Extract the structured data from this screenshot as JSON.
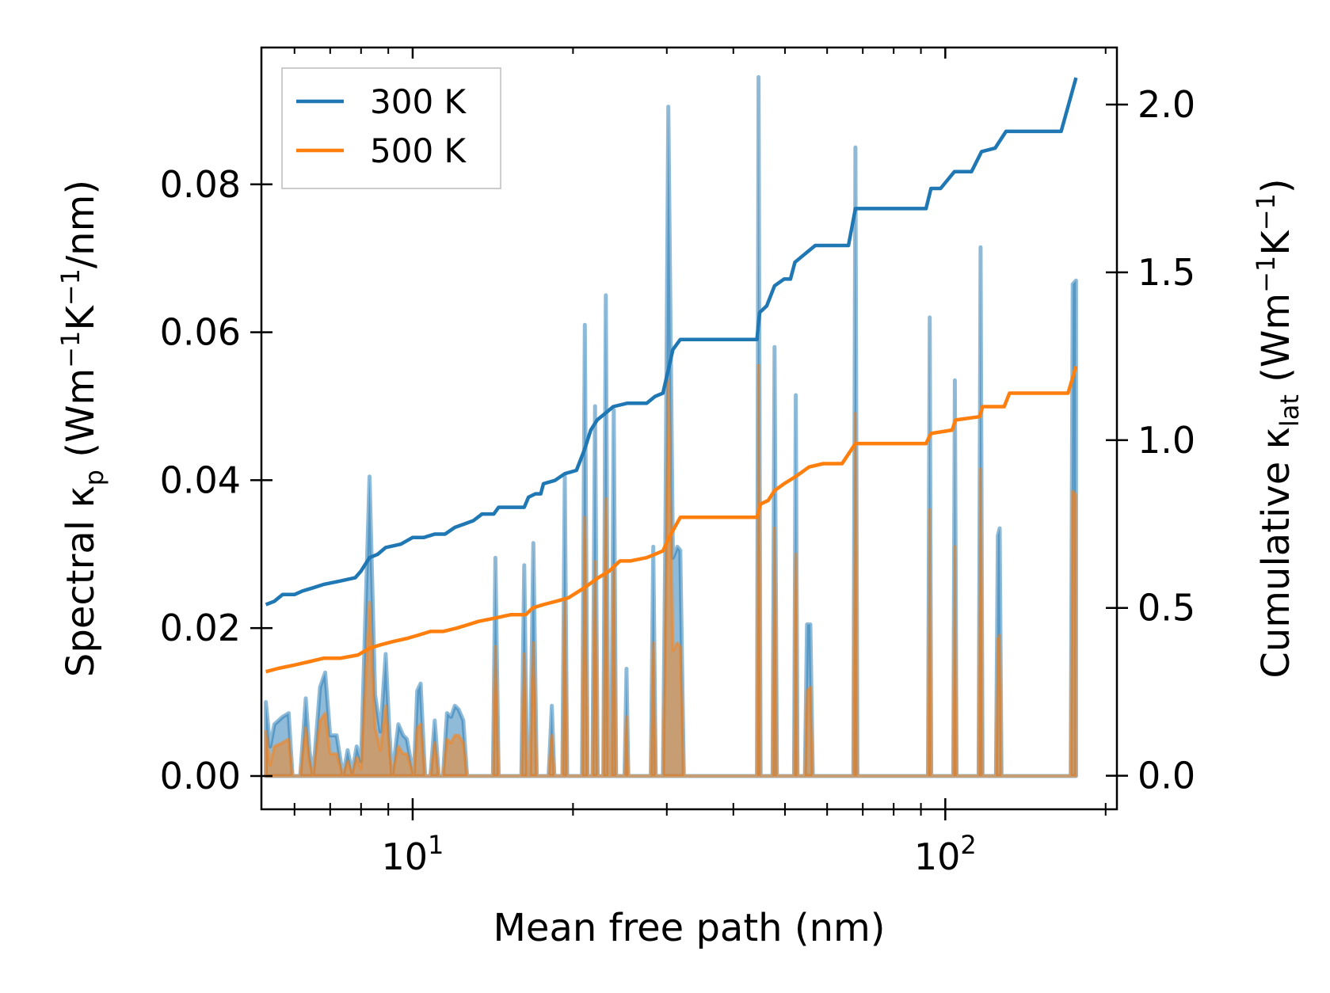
{
  "chart_data": {
    "type": "line",
    "x_scale": "log",
    "xlabel": "Mean free path (nm)",
    "ylabel_left": {
      "prefix": "Spectral κ",
      "sub": "p",
      "suffix_pre": " (Wm",
      "sup1": "−1",
      "mid": "K",
      "sup2": "−1",
      "tail": "/nm)"
    },
    "ylabel_right": {
      "prefix": "Cumulative κ",
      "sub": "lat",
      "suffix_pre": " (Wm",
      "sup1": "−1",
      "mid": "K",
      "sup2": "−1",
      "tail": ")"
    },
    "xlim": [
      5.2,
      210
    ],
    "ylim_left": [
      -0.0045,
      0.0985
    ],
    "ylim_right": [
      -0.1,
      2.17
    ],
    "x_ticks": [
      {
        "value": 10,
        "base": "10",
        "exp": "1"
      },
      {
        "value": 100,
        "base": "10",
        "exp": "2"
      }
    ],
    "y_left_ticks": [
      "0.00",
      "0.02",
      "0.04",
      "0.06",
      "0.08"
    ],
    "y_right_ticks": [
      "0.0",
      "0.5",
      "1.0",
      "1.5",
      "2.0"
    ],
    "legend": {
      "position": "top-left",
      "entries": [
        "300 K",
        "500 K"
      ]
    },
    "colors": {
      "300K": "#1f77b4",
      "500K": "#ff7f0e",
      "fill_300K": "#1f77b4",
      "fill_500K": "#ff7f0e"
    },
    "spectral_300K": [
      [
        5.3,
        0.01
      ],
      [
        5.4,
        0.004
      ],
      [
        5.5,
        0.007
      ],
      [
        5.7,
        0.008
      ],
      [
        5.85,
        0.0085
      ],
      [
        5.95,
        0
      ],
      [
        6.15,
        0
      ],
      [
        6.3,
        0.0105
      ],
      [
        6.4,
        0.0035
      ],
      [
        6.5,
        0
      ],
      [
        6.7,
        0.012
      ],
      [
        6.85,
        0.014
      ],
      [
        7.0,
        0.0055
      ],
      [
        7.2,
        0.0055
      ],
      [
        7.4,
        0
      ],
      [
        7.55,
        0.0035
      ],
      [
        7.7,
        0.0005
      ],
      [
        7.85,
        0.004
      ],
      [
        8.0,
        0.002
      ],
      [
        8.3,
        0.0405
      ],
      [
        8.5,
        0.011
      ],
      [
        8.7,
        0.006
      ],
      [
        8.9,
        0.0165
      ],
      [
        9.05,
        0.0055
      ],
      [
        9.15,
        0
      ],
      [
        9.4,
        0.007
      ],
      [
        9.6,
        0.0055
      ],
      [
        9.75,
        0.005
      ],
      [
        9.9,
        0.0025
      ],
      [
        10.05,
        0
      ],
      [
        10.2,
        0.0115
      ],
      [
        10.35,
        0.0125
      ],
      [
        10.55,
        0
      ],
      [
        10.8,
        0
      ],
      [
        11.0,
        0.0075
      ],
      [
        11.2,
        0
      ],
      [
        11.4,
        0
      ],
      [
        11.6,
        0.0085
      ],
      [
        11.8,
        0.008
      ],
      [
        12.0,
        0.0095
      ],
      [
        12.2,
        0.009
      ],
      [
        12.45,
        0.0075
      ],
      [
        12.65,
        0
      ],
      [
        14.15,
        0
      ],
      [
        14.3,
        0.0295
      ],
      [
        14.5,
        0
      ],
      [
        16.0,
        0
      ],
      [
        16.2,
        0.0285
      ],
      [
        16.4,
        0
      ],
      [
        16.6,
        0
      ],
      [
        16.85,
        0.0315
      ],
      [
        17.1,
        0
      ],
      [
        18.0,
        0
      ],
      [
        18.25,
        0.0095
      ],
      [
        18.45,
        0
      ],
      [
        19.1,
        0
      ],
      [
        19.3,
        0.0405
      ],
      [
        19.5,
        0
      ],
      [
        20.8,
        0
      ],
      [
        21.05,
        0.061
      ],
      [
        21.3,
        0
      ],
      [
        21.75,
        0
      ],
      [
        22.0,
        0.05
      ],
      [
        22.25,
        0
      ],
      [
        22.8,
        0
      ],
      [
        23.05,
        0.065
      ],
      [
        23.3,
        0
      ],
      [
        23.6,
        0
      ],
      [
        23.85,
        0.0495
      ],
      [
        24.1,
        0
      ],
      [
        25.0,
        0
      ],
      [
        25.2,
        0.0145
      ],
      [
        25.4,
        0
      ],
      [
        28.0,
        0
      ],
      [
        28.3,
        0.031
      ],
      [
        28.6,
        0
      ],
      [
        29.5,
        0
      ],
      [
        29.8,
        0.0305
      ],
      [
        30.2,
        0.0905
      ],
      [
        30.8,
        0.0295
      ],
      [
        31.4,
        0.031
      ],
      [
        31.8,
        0.0305
      ],
      [
        32.3,
        0
      ],
      [
        44.3,
        0
      ],
      [
        44.6,
        0.0945
      ],
      [
        45.0,
        0
      ],
      [
        47.4,
        0
      ],
      [
        47.8,
        0.058
      ],
      [
        48.3,
        0
      ],
      [
        52.0,
        0
      ],
      [
        52.4,
        0.0515
      ],
      [
        52.8,
        0
      ],
      [
        54.5,
        0
      ],
      [
        55.0,
        0.0205
      ],
      [
        55.8,
        0.0205
      ],
      [
        56.4,
        0
      ],
      [
        67.2,
        0
      ],
      [
        67.8,
        0.085
      ],
      [
        68.4,
        0
      ],
      [
        92.8,
        0
      ],
      [
        93.5,
        0.062
      ],
      [
        94.1,
        0
      ],
      [
        103.5,
        0
      ],
      [
        104.2,
        0.0535
      ],
      [
        105,
        0
      ],
      [
        115.5,
        0
      ],
      [
        116.5,
        0.0715
      ],
      [
        117.5,
        0
      ],
      [
        124.5,
        0
      ],
      [
        125.5,
        0.0325
      ],
      [
        126.5,
        0.0335
      ],
      [
        127.5,
        0
      ],
      [
        172,
        0
      ],
      [
        173.5,
        0.0665
      ],
      [
        176,
        0.067
      ]
    ],
    "spectral_500K": [
      [
        5.3,
        0.006
      ],
      [
        5.4,
        0.0015
      ],
      [
        5.5,
        0.004
      ],
      [
        5.7,
        0.0045
      ],
      [
        5.85,
        0.005
      ],
      [
        5.95,
        0
      ],
      [
        6.15,
        0
      ],
      [
        6.3,
        0.0065
      ],
      [
        6.4,
        0.002
      ],
      [
        6.5,
        0
      ],
      [
        6.7,
        0.0075
      ],
      [
        6.85,
        0.0085
      ],
      [
        7.0,
        0.003
      ],
      [
        7.2,
        0.003
      ],
      [
        7.4,
        0
      ],
      [
        7.55,
        0.002
      ],
      [
        7.7,
        0.0003
      ],
      [
        7.85,
        0.0025
      ],
      [
        8.0,
        0.001
      ],
      [
        8.3,
        0.0235
      ],
      [
        8.5,
        0.0065
      ],
      [
        8.7,
        0.0035
      ],
      [
        8.9,
        0.0095
      ],
      [
        9.05,
        0.003
      ],
      [
        9.15,
        0
      ],
      [
        9.4,
        0.004
      ],
      [
        9.6,
        0.003
      ],
      [
        9.75,
        0.003
      ],
      [
        9.9,
        0.0015
      ],
      [
        10.05,
        0
      ],
      [
        10.2,
        0.0065
      ],
      [
        10.35,
        0.007
      ],
      [
        10.55,
        0
      ],
      [
        10.8,
        0
      ],
      [
        11.0,
        0.0045
      ],
      [
        11.2,
        0
      ],
      [
        11.4,
        0
      ],
      [
        11.6,
        0.005
      ],
      [
        11.8,
        0.0045
      ],
      [
        12.0,
        0.0055
      ],
      [
        12.2,
        0.0055
      ],
      [
        12.45,
        0.0045
      ],
      [
        12.65,
        0
      ],
      [
        14.15,
        0
      ],
      [
        14.3,
        0.0175
      ],
      [
        14.5,
        0
      ],
      [
        16.0,
        0
      ],
      [
        16.2,
        0.0165
      ],
      [
        16.4,
        0
      ],
      [
        16.6,
        0
      ],
      [
        16.85,
        0.018
      ],
      [
        17.1,
        0
      ],
      [
        18.0,
        0
      ],
      [
        18.25,
        0.0055
      ],
      [
        18.45,
        0
      ],
      [
        19.1,
        0
      ],
      [
        19.3,
        0.024
      ],
      [
        19.5,
        0
      ],
      [
        20.8,
        0
      ],
      [
        21.05,
        0.035
      ],
      [
        21.3,
        0
      ],
      [
        21.75,
        0
      ],
      [
        22.0,
        0.029
      ],
      [
        22.25,
        0
      ],
      [
        22.8,
        0
      ],
      [
        23.05,
        0.0375
      ],
      [
        23.3,
        0
      ],
      [
        23.6,
        0
      ],
      [
        23.85,
        0.0285
      ],
      [
        24.1,
        0
      ],
      [
        25.0,
        0
      ],
      [
        25.2,
        0.008
      ],
      [
        25.4,
        0
      ],
      [
        28.0,
        0
      ],
      [
        28.3,
        0.018
      ],
      [
        28.6,
        0
      ],
      [
        29.5,
        0
      ],
      [
        29.8,
        0.0175
      ],
      [
        30.2,
        0.0535
      ],
      [
        30.8,
        0.017
      ],
      [
        31.4,
        0.018
      ],
      [
        31.8,
        0.0175
      ],
      [
        32.3,
        0
      ],
      [
        44.3,
        0
      ],
      [
        44.6,
        0.0555
      ],
      [
        45.0,
        0
      ],
      [
        47.4,
        0
      ],
      [
        47.8,
        0.0335
      ],
      [
        48.3,
        0
      ],
      [
        52.0,
        0
      ],
      [
        52.4,
        0.03
      ],
      [
        52.8,
        0
      ],
      [
        54.5,
        0
      ],
      [
        55.0,
        0.0115
      ],
      [
        55.8,
        0.012
      ],
      [
        56.4,
        0
      ],
      [
        67.2,
        0
      ],
      [
        67.8,
        0.049
      ],
      [
        68.4,
        0
      ],
      [
        92.8,
        0
      ],
      [
        93.5,
        0.036
      ],
      [
        94.1,
        0
      ],
      [
        103.5,
        0
      ],
      [
        104.2,
        0.031
      ],
      [
        105,
        0
      ],
      [
        115.5,
        0
      ],
      [
        116.5,
        0.0415
      ],
      [
        117.5,
        0
      ],
      [
        124.5,
        0
      ],
      [
        125.5,
        0.0185
      ],
      [
        126.5,
        0.019
      ],
      [
        127.5,
        0
      ],
      [
        172,
        0
      ],
      [
        173.5,
        0.0385
      ],
      [
        176,
        0.038
      ]
    ],
    "cumulative_300K": [
      [
        5.3,
        0.51
      ],
      [
        5.5,
        0.52
      ],
      [
        5.7,
        0.54
      ],
      [
        6.0,
        0.54
      ],
      [
        6.2,
        0.55
      ],
      [
        6.5,
        0.56
      ],
      [
        6.8,
        0.57
      ],
      [
        7.3,
        0.58
      ],
      [
        7.8,
        0.59
      ],
      [
        8.0,
        0.61
      ],
      [
        8.3,
        0.65
      ],
      [
        8.6,
        0.66
      ],
      [
        8.9,
        0.68
      ],
      [
        9.5,
        0.69
      ],
      [
        10.0,
        0.71
      ],
      [
        10.5,
        0.71
      ],
      [
        11.0,
        0.72
      ],
      [
        11.5,
        0.72
      ],
      [
        12.0,
        0.74
      ],
      [
        12.5,
        0.75
      ],
      [
        13.0,
        0.76
      ],
      [
        13.5,
        0.78
      ],
      [
        14.2,
        0.78
      ],
      [
        14.5,
        0.8
      ],
      [
        15.5,
        0.8
      ],
      [
        16.2,
        0.8
      ],
      [
        16.5,
        0.83
      ],
      [
        17.0,
        0.84
      ],
      [
        17.4,
        0.84
      ],
      [
        17.6,
        0.87
      ],
      [
        18.5,
        0.88
      ],
      [
        19.3,
        0.9
      ],
      [
        20.3,
        0.91
      ],
      [
        21.0,
        0.97
      ],
      [
        21.6,
        1.03
      ],
      [
        22.2,
        1.06
      ],
      [
        23.0,
        1.08
      ],
      [
        23.8,
        1.1
      ],
      [
        25.3,
        1.11
      ],
      [
        27.5,
        1.11
      ],
      [
        28.5,
        1.13
      ],
      [
        29.5,
        1.14
      ],
      [
        30.1,
        1.2
      ],
      [
        30.8,
        1.27
      ],
      [
        31.8,
        1.3
      ],
      [
        44.3,
        1.3
      ],
      [
        44.8,
        1.38
      ],
      [
        46.2,
        1.4
      ],
      [
        47.8,
        1.46
      ],
      [
        49.8,
        1.48
      ],
      [
        51.2,
        1.48
      ],
      [
        52.2,
        1.53
      ],
      [
        55.0,
        1.56
      ],
      [
        57.0,
        1.58
      ],
      [
        62.0,
        1.58
      ],
      [
        65.8,
        1.58
      ],
      [
        67.8,
        1.69
      ],
      [
        71.5,
        1.69
      ],
      [
        92.0,
        1.69
      ],
      [
        94.0,
        1.75
      ],
      [
        98.0,
        1.75
      ],
      [
        104.0,
        1.8
      ],
      [
        112.0,
        1.8
      ],
      [
        117.0,
        1.86
      ],
      [
        124.0,
        1.87
      ],
      [
        130.0,
        1.92
      ],
      [
        165.0,
        1.92
      ],
      [
        176.0,
        2.08
      ]
    ],
    "cumulative_500K": [
      [
        5.3,
        0.31
      ],
      [
        5.6,
        0.32
      ],
      [
        6.0,
        0.33
      ],
      [
        6.4,
        0.34
      ],
      [
        6.8,
        0.35
      ],
      [
        7.3,
        0.35
      ],
      [
        7.9,
        0.36
      ],
      [
        8.3,
        0.38
      ],
      [
        8.7,
        0.39
      ],
      [
        9.2,
        0.4
      ],
      [
        9.8,
        0.41
      ],
      [
        10.3,
        0.42
      ],
      [
        10.8,
        0.43
      ],
      [
        11.4,
        0.43
      ],
      [
        12.1,
        0.44
      ],
      [
        12.7,
        0.45
      ],
      [
        13.3,
        0.46
      ],
      [
        14.3,
        0.47
      ],
      [
        15.3,
        0.48
      ],
      [
        16.3,
        0.48
      ],
      [
        16.8,
        0.5
      ],
      [
        17.6,
        0.51
      ],
      [
        18.6,
        0.52
      ],
      [
        19.6,
        0.53
      ],
      [
        21.0,
        0.56
      ],
      [
        22.3,
        0.59
      ],
      [
        23.4,
        0.61
      ],
      [
        24.5,
        0.64
      ],
      [
        25.6,
        0.64
      ],
      [
        27.5,
        0.65
      ],
      [
        28.5,
        0.66
      ],
      [
        29.5,
        0.67
      ],
      [
        30.3,
        0.71
      ],
      [
        31.8,
        0.77
      ],
      [
        44.3,
        0.77
      ],
      [
        45.0,
        0.81
      ],
      [
        46.5,
        0.82
      ],
      [
        47.8,
        0.85
      ],
      [
        49.8,
        0.87
      ],
      [
        52.2,
        0.89
      ],
      [
        55.5,
        0.92
      ],
      [
        59.0,
        0.93
      ],
      [
        64.0,
        0.93
      ],
      [
        67.8,
        0.99
      ],
      [
        92.0,
        0.99
      ],
      [
        94.0,
        1.02
      ],
      [
        103.0,
        1.03
      ],
      [
        104.5,
        1.06
      ],
      [
        116.0,
        1.07
      ],
      [
        117.5,
        1.1
      ],
      [
        129.0,
        1.1
      ],
      [
        132.0,
        1.14
      ],
      [
        170.0,
        1.14
      ],
      [
        176.0,
        1.22
      ]
    ]
  }
}
